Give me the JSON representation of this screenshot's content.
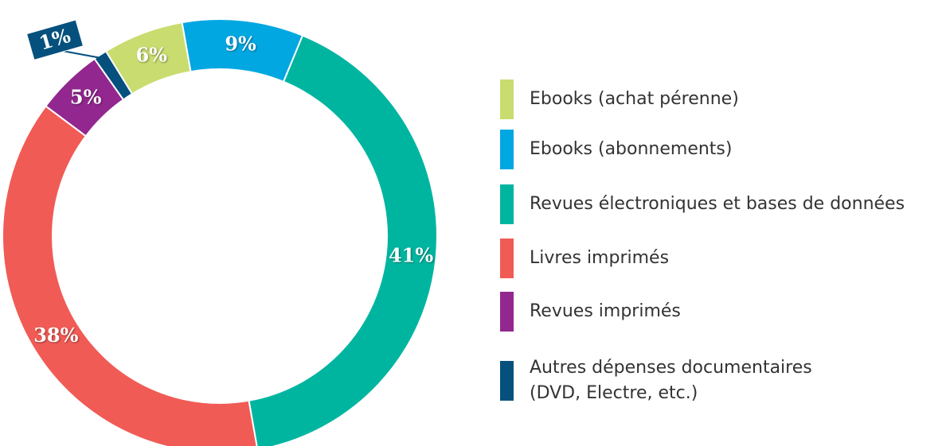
{
  "chart_data": {
    "type": "donut",
    "categories": [
      "Ebooks (achat pérenne)",
      "Ebooks (abonnements)",
      "Revues électroniques et bases de données",
      "Livres imprimés",
      "Revues imprimés",
      "Autres dépenses documentaires\n(DVD, Electre, etc.)"
    ],
    "values": [
      6,
      9,
      41,
      38,
      5,
      1
    ],
    "value_labels": [
      "6%",
      "9%",
      "41%",
      "38%",
      "5%",
      "1%"
    ],
    "colors": [
      "#c9dc6f",
      "#00a7e1",
      "#00b5a0",
      "#f15b55",
      "#92278f",
      "#06507d"
    ]
  }
}
